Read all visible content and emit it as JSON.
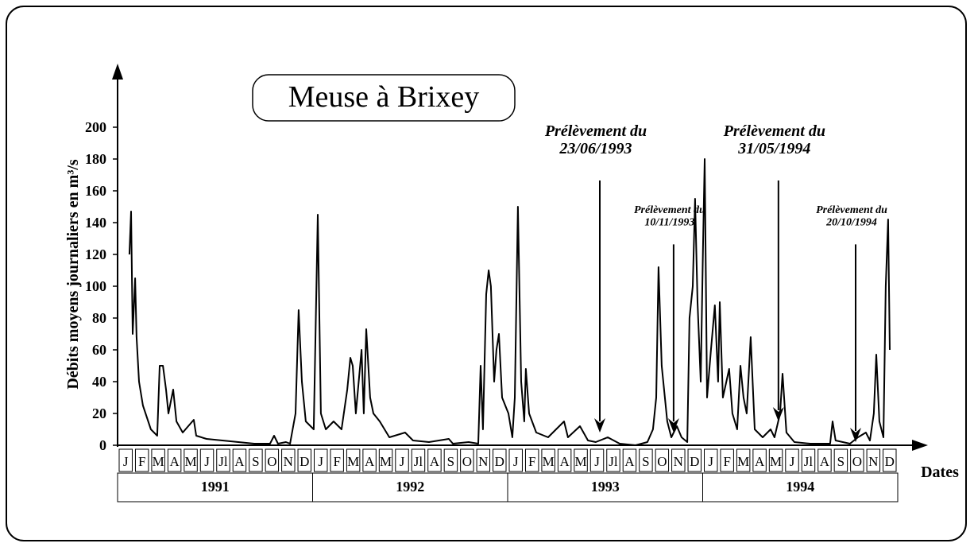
{
  "chart_data": {
    "type": "line",
    "title": "Meuse à Brixey",
    "ylabel": "Débits moyens journaliers en m³/s",
    "xlabel": "Dates",
    "color": "#000000",
    "ylim": [
      0,
      200
    ],
    "yticks": [
      0,
      20,
      40,
      60,
      80,
      100,
      120,
      140,
      160,
      180,
      200
    ],
    "xlim": [
      0,
      48
    ],
    "months": [
      "J",
      "F",
      "M",
      "A",
      "M",
      "J",
      "Jl",
      "A",
      "S",
      "O",
      "N",
      "D",
      "J",
      "F",
      "M",
      "A",
      "M",
      "J",
      "Jl",
      "A",
      "S",
      "O",
      "N",
      "D",
      "J",
      "F",
      "M",
      "A",
      "M",
      "J",
      "Jl",
      "A",
      "S",
      "O",
      "N",
      "D",
      "J",
      "F",
      "M",
      "A",
      "M",
      "J",
      "Jl",
      "A",
      "S",
      "O",
      "N",
      "D"
    ],
    "years": [
      "1991",
      "1992",
      "1993",
      "1994"
    ],
    "x": [
      0.73,
      0.83,
      0.93,
      1.08,
      1.17,
      1.32,
      1.56,
      2.05,
      2.44,
      2.59,
      2.79,
      2.98,
      3.13,
      3.42,
      3.62,
      4.01,
      4.69,
      4.84,
      5.47,
      6.45,
      7.43,
      8.41,
      9.38,
      9.63,
      9.87,
      10.36,
      10.61,
      10.95,
      11.14,
      11.34,
      11.58,
      12.07,
      12.32,
      12.51,
      12.81,
      13.29,
      13.78,
      14.13,
      14.32,
      14.47,
      14.66,
      15.01,
      15.15,
      15.3,
      15.54,
      15.74,
      16.13,
      16.72,
      17.69,
      18.18,
      19.16,
      20.38,
      20.63,
      21.6,
      22.19,
      22.34,
      22.48,
      22.68,
      22.83,
      22.97,
      23.17,
      23.31,
      23.46,
      23.66,
      24.05,
      24.29,
      24.44,
      24.63,
      24.83,
      25.02,
      25.12,
      25.32,
      25.76,
      26.49,
      27.47,
      27.71,
      28.45,
      28.94,
      29.42,
      30.16,
      30.89,
      31.87,
      32.6,
      32.94,
      33.14,
      33.28,
      33.48,
      33.82,
      34.07,
      34.41,
      34.7,
      35.05,
      35.19,
      35.39,
      35.53,
      35.68,
      35.88,
      36.02,
      36.12,
      36.27,
      36.51,
      36.75,
      36.95,
      37.05,
      37.24,
      37.63,
      37.83,
      38.12,
      38.32,
      38.51,
      38.71,
      38.95,
      39.2,
      39.69,
      40.18,
      40.42,
      40.76,
      40.91,
      41.15,
      41.64,
      42.62,
      43.84,
      43.99,
      44.18,
      45.06,
      45.55,
      46.04,
      46.29,
      46.53,
      46.68,
      46.87,
      47.12,
      47.26,
      47.41,
      47.51
    ],
    "values": [
      120,
      147,
      70,
      105,
      68,
      40,
      25,
      10,
      6,
      50,
      50,
      35,
      20,
      35,
      15,
      8,
      16,
      6,
      4,
      3,
      2,
      1,
      1,
      6,
      1,
      2,
      1,
      20,
      85,
      40,
      15,
      10,
      145,
      20,
      10,
      15,
      10,
      35,
      55,
      50,
      20,
      60,
      20,
      73,
      30,
      20,
      15,
      5,
      8,
      3,
      2,
      4,
      1,
      2,
      1,
      50,
      10,
      95,
      110,
      100,
      40,
      60,
      70,
      30,
      20,
      5,
      30,
      150,
      40,
      15,
      48,
      20,
      8,
      5,
      15,
      5,
      12,
      3,
      2,
      5,
      1,
      0,
      2,
      10,
      30,
      112,
      50,
      15,
      5,
      12,
      5,
      2,
      80,
      100,
      155,
      90,
      40,
      125,
      180,
      30,
      60,
      88,
      40,
      90,
      30,
      48,
      20,
      10,
      50,
      30,
      20,
      68,
      10,
      5,
      10,
      5,
      20,
      45,
      8,
      2,
      1,
      1,
      15,
      3,
      1,
      5,
      8,
      3,
      20,
      57,
      15,
      5,
      100,
      142,
      60
    ],
    "annotations": [
      {
        "text": [
          "Prélèvement du",
          "23/06/1993"
        ],
        "x": 29.67,
        "y": 8
      },
      {
        "text": [
          "Prélèvement du",
          "10/11/1993"
        ],
        "x": 34.21,
        "y": 8
      },
      {
        "text": [
          "Prélèvement du",
          "31/05/1994"
        ],
        "x": 40.66,
        "y": 15
      },
      {
        "text": [
          "Prélèvement du",
          "20/10/1994"
        ],
        "x": 45.41,
        "y": 2
      }
    ]
  }
}
